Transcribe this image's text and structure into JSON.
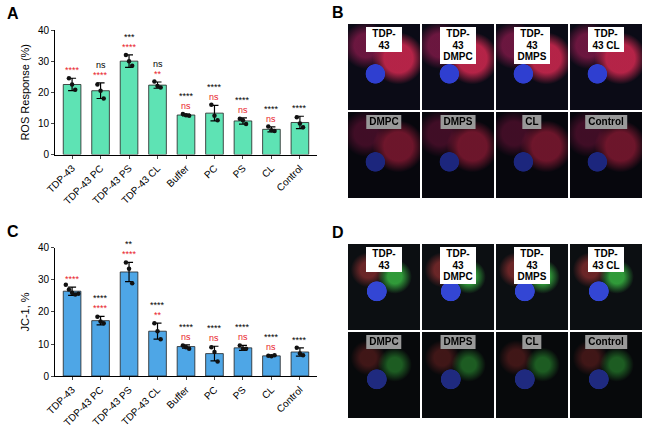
{
  "chart_data": [
    {
      "panel": "A",
      "type": "bar",
      "y_label": "ROS Response (%)",
      "color": "#5ee3b4",
      "categories": [
        "TDP-43",
        "TDP-43 PC",
        "TDP-43 PS",
        "TDP-43 CL",
        "Buffer",
        "PC",
        "PS",
        "CL",
        "Control"
      ],
      "values": [
        22.5,
        20.5,
        30.0,
        22.3,
        12.7,
        13.3,
        10.8,
        8.1,
        10.3
      ],
      "errors": [
        2.0,
        2.5,
        2.0,
        1.0,
        0.3,
        2.5,
        1.0,
        0.8,
        2.0
      ],
      "points": [
        [
          24.5,
          22.5,
          20.8
        ],
        [
          22.5,
          20.5,
          18.0
        ],
        [
          32.0,
          30.0,
          28.5
        ],
        [
          23.5,
          22.0,
          21.5
        ],
        [
          13.0,
          12.6,
          12.5
        ],
        [
          16.0,
          12.5,
          11.0
        ],
        [
          11.5,
          11.0,
          9.8
        ],
        [
          9.0,
          7.8,
          7.6
        ],
        [
          12.0,
          10.0,
          8.8
        ]
      ],
      "significance": [
        {
          "color": "#e8202a",
          "labels": [
            "****",
            "****",
            "****",
            "**",
            "ns",
            "ns",
            "ns",
            "ns",
            null
          ]
        },
        {
          "color": "#000000",
          "labels": [
            null,
            "ns",
            "***",
            "ns",
            "****",
            "****",
            "****",
            "****",
            "****"
          ]
        }
      ],
      "ylim": [
        0,
        40
      ],
      "yticks": [
        0,
        10,
        20,
        30,
        40
      ],
      "grid": false
    },
    {
      "panel": "C",
      "type": "bar",
      "y_label": "JC-1, %",
      "color": "#4ea6e6",
      "categories": [
        "TDP-43",
        "TDP-43 PC",
        "TDP-43 PS",
        "TDP-43 CL",
        "Buffer",
        "PC",
        "PS",
        "CL",
        "Control"
      ],
      "values": [
        26.5,
        17.3,
        32.5,
        14.0,
        9.2,
        7.0,
        8.8,
        6.3,
        7.5
      ],
      "errors": [
        1.3,
        1.3,
        3.0,
        2.5,
        0.5,
        2.3,
        0.8,
        0.2,
        1.3
      ],
      "points": [
        [
          28.5,
          27.0,
          26.0,
          25.5,
          25.7
        ],
        [
          18.5,
          17.0,
          16.5
        ],
        [
          35.5,
          33.5,
          29.0
        ],
        [
          16.5,
          14.0,
          11.5
        ],
        [
          9.5,
          9.0,
          8.5
        ],
        [
          9.0,
          7.5,
          4.5
        ],
        [
          9.5,
          8.5,
          8.5
        ],
        [
          6.3,
          6.2,
          6.5
        ],
        [
          8.8,
          7.0,
          6.5
        ]
      ],
      "significance": [
        {
          "color": "#e8202a",
          "labels": [
            "****",
            "****",
            "****",
            "**",
            "ns",
            "ns",
            "ns",
            "ns",
            null
          ]
        },
        {
          "color": "#000000",
          "labels": [
            null,
            "****",
            "**",
            "****",
            "****",
            "****",
            "****",
            "****",
            "****"
          ]
        }
      ],
      "ylim": [
        0,
        40
      ],
      "yticks": [
        0,
        10,
        20,
        30,
        40
      ],
      "grid": false
    }
  ],
  "image_panels": [
    {
      "panel": "B",
      "labels": [
        "TDP-43",
        "TDP-43 DMPC",
        "TDP-43 DMPS",
        "TDP-43 CL",
        "DMPC",
        "DMPS",
        "CL",
        "Control"
      ]
    },
    {
      "panel": "D",
      "labels": [
        "TDP-43",
        "TDP-43 DMPC",
        "TDP-43 DMPS",
        "TDP-43 CL",
        "DMPC",
        "DMPS",
        "CL",
        "Control"
      ]
    }
  ]
}
